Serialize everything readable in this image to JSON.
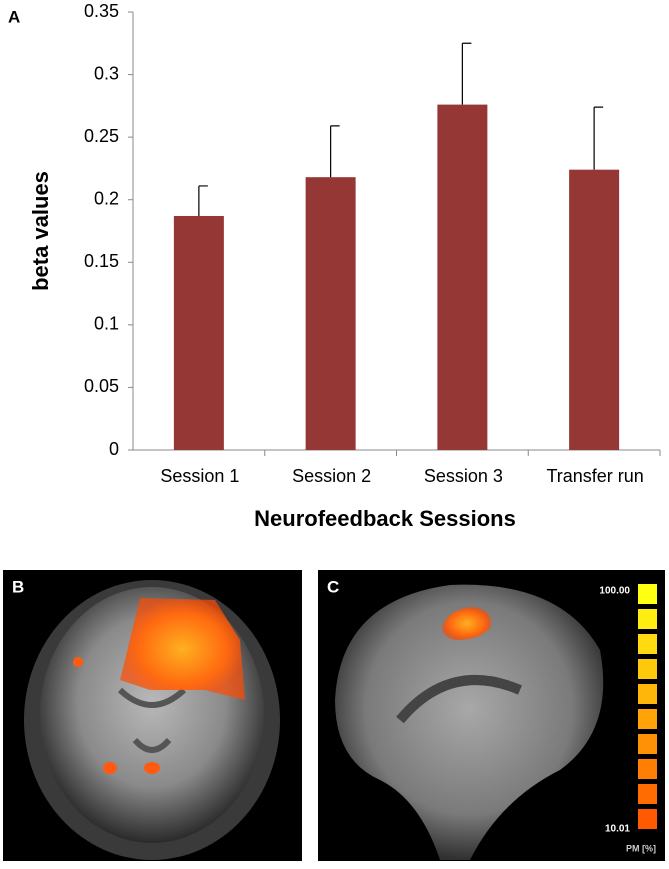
{
  "chart_data": {
    "type": "bar",
    "y_label": "beta values",
    "x_label": "Neurofeedback Sessions",
    "categories": [
      "Session 1",
      "Session 2",
      "Session 3",
      "Transfer run"
    ],
    "values": [
      0.187,
      0.218,
      0.276,
      0.224
    ],
    "errors": [
      0.024,
      0.041,
      0.049,
      0.05
    ],
    "color": "#953735",
    "ylim": [
      0,
      0.35
    ],
    "yticks": [
      0,
      0.05,
      0.1,
      0.15,
      0.2,
      0.25,
      0.3,
      0.35
    ],
    "grid": false
  },
  "panels": {
    "a": "A",
    "b": "B",
    "c": "C"
  },
  "colorbar": {
    "max": "100.00",
    "min": "10.01",
    "unit": "PM [%]"
  }
}
